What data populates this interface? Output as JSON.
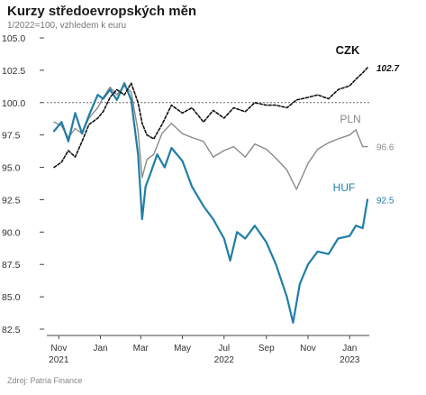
{
  "chart_data": {
    "type": "line",
    "title": "Kurzy středoevropských měn",
    "subtitle": "1/2022=100, vzhledem k euru",
    "source": "Zdroj: Patria Finance",
    "ylim": [
      82.5,
      105.0
    ],
    "yticks": [
      "105.0",
      "102.5",
      "100.0",
      "97.5",
      "95.0",
      "92.5",
      "90.0",
      "87.5",
      "85.0",
      "82.5"
    ],
    "reference_line": 100.0,
    "x_month_labels": [
      "Nov",
      "Jan",
      "Mar",
      "May",
      "Jul",
      "Sep",
      "Nov",
      "Jan"
    ],
    "x_year_labels": [
      "2021",
      "2022",
      "2023"
    ],
    "grid": false,
    "series": [
      {
        "name": "CZK",
        "color": "#111111",
        "end_label": "102.7",
        "x": [
          "2021-10-25",
          "2021-11-05",
          "2021-11-15",
          "2021-11-25",
          "2021-12-05",
          "2021-12-15",
          "2021-12-28",
          "2022-01-05",
          "2022-01-15",
          "2022-01-25",
          "2022-02-05",
          "2022-02-15",
          "2022-02-25",
          "2022-03-03",
          "2022-03-10",
          "2022-03-20",
          "2022-04-01",
          "2022-04-15",
          "2022-05-01",
          "2022-05-15",
          "2022-06-01",
          "2022-06-15",
          "2022-07-01",
          "2022-07-15",
          "2022-08-01",
          "2022-08-15",
          "2022-09-01",
          "2022-09-15",
          "2022-10-01",
          "2022-10-15",
          "2022-11-01",
          "2022-11-15",
          "2022-12-01",
          "2022-12-15",
          "2023-01-01",
          "2023-01-10",
          "2023-01-20",
          "2023-01-27"
        ],
        "values": [
          95.0,
          95.4,
          96.3,
          95.8,
          97.0,
          98.3,
          98.8,
          99.3,
          100.4,
          101.0,
          100.6,
          101.5,
          100.0,
          98.4,
          97.5,
          97.2,
          98.3,
          99.8,
          99.2,
          99.6,
          98.5,
          99.4,
          98.8,
          99.6,
          99.3,
          100.0,
          99.8,
          99.8,
          99.6,
          100.2,
          100.4,
          100.6,
          100.3,
          101.0,
          101.3,
          101.8,
          102.3,
          102.7
        ]
      },
      {
        "name": "PLN",
        "color": "#8a8a8a",
        "end_label": "96.6",
        "x": [
          "2021-10-25",
          "2021-11-05",
          "2021-11-15",
          "2021-11-25",
          "2021-12-05",
          "2021-12-15",
          "2021-12-28",
          "2022-01-05",
          "2022-01-15",
          "2022-01-25",
          "2022-02-05",
          "2022-02-15",
          "2022-02-25",
          "2022-03-03",
          "2022-03-10",
          "2022-03-20",
          "2022-04-01",
          "2022-04-15",
          "2022-05-01",
          "2022-05-15",
          "2022-06-01",
          "2022-06-15",
          "2022-07-01",
          "2022-07-15",
          "2022-08-01",
          "2022-08-15",
          "2022-09-01",
          "2022-09-15",
          "2022-10-01",
          "2022-10-15",
          "2022-11-01",
          "2022-11-15",
          "2022-12-01",
          "2022-12-15",
          "2023-01-01",
          "2023-01-10",
          "2023-01-20",
          "2023-01-27"
        ],
        "values": [
          98.5,
          98.2,
          97.3,
          98.0,
          97.6,
          98.8,
          99.6,
          100.4,
          101.2,
          100.6,
          101.3,
          100.8,
          97.8,
          94.2,
          95.6,
          96.0,
          97.6,
          98.4,
          97.6,
          97.3,
          97.0,
          95.8,
          96.3,
          96.6,
          95.8,
          96.8,
          96.4,
          95.7,
          94.8,
          93.3,
          95.3,
          96.4,
          96.9,
          97.2,
          97.5,
          97.9,
          96.6,
          96.6
        ]
      },
      {
        "name": "HUF",
        "color": "#1f7ea6",
        "end_label": "92.5",
        "x": [
          "2021-10-25",
          "2021-11-05",
          "2021-11-15",
          "2021-11-25",
          "2021-12-05",
          "2021-12-15",
          "2021-12-28",
          "2022-01-05",
          "2022-01-15",
          "2022-01-25",
          "2022-02-05",
          "2022-02-15",
          "2022-02-25",
          "2022-03-03",
          "2022-03-08",
          "2022-03-15",
          "2022-03-25",
          "2022-04-05",
          "2022-04-15",
          "2022-05-01",
          "2022-05-15",
          "2022-06-01",
          "2022-06-15",
          "2022-07-01",
          "2022-07-10",
          "2022-07-20",
          "2022-08-01",
          "2022-08-15",
          "2022-09-01",
          "2022-09-15",
          "2022-10-01",
          "2022-10-10",
          "2022-10-20",
          "2022-11-01",
          "2022-11-15",
          "2022-12-01",
          "2022-12-15",
          "2023-01-01",
          "2023-01-10",
          "2023-01-20",
          "2023-01-27"
        ],
        "values": [
          97.8,
          98.5,
          97.0,
          99.2,
          97.6,
          99.0,
          100.6,
          100.3,
          101.0,
          100.2,
          101.5,
          100.2,
          96.0,
          91.0,
          93.5,
          94.5,
          96.0,
          95.0,
          96.5,
          95.5,
          93.5,
          92.0,
          91.0,
          89.5,
          87.8,
          90.0,
          89.5,
          90.5,
          89.2,
          87.5,
          85.0,
          83.0,
          86.0,
          87.5,
          88.5,
          88.3,
          89.5,
          89.7,
          90.5,
          90.3,
          92.5
        ]
      }
    ]
  }
}
